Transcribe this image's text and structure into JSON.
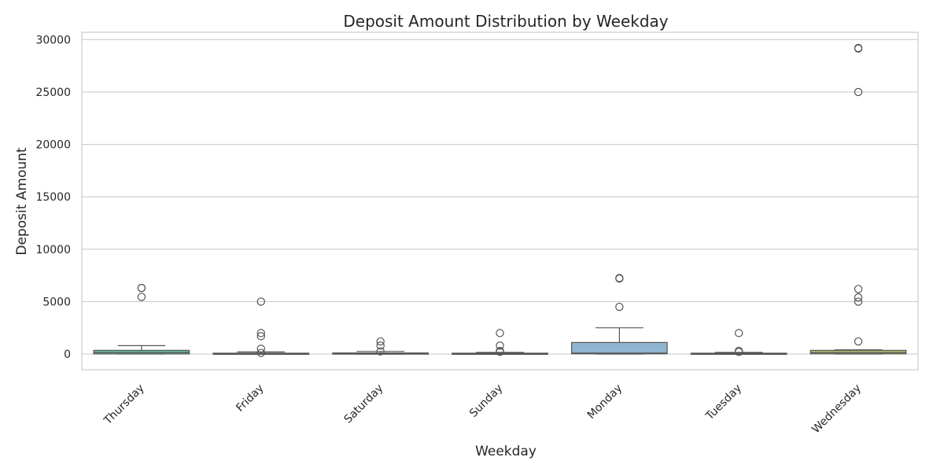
{
  "chart_data": {
    "type": "box",
    "title": "Deposit Amount Distribution by Weekday",
    "xlabel": "Weekday",
    "ylabel": "Deposit Amount",
    "ylim": [
      -1500,
      30700
    ],
    "yticks": [
      0,
      5000,
      10000,
      15000,
      20000,
      25000,
      30000
    ],
    "grid": true,
    "categories": [
      "Thursday",
      "Friday",
      "Saturday",
      "Sunday",
      "Monday",
      "Tuesday",
      "Wednesday"
    ],
    "colors": [
      "#66c2a5",
      "#fc8d62",
      "#8da0cb",
      "#e78ac3",
      "#8fb5d1",
      "#ffd92f",
      "#b3c96f"
    ],
    "boxes": [
      {
        "name": "Thursday",
        "whisker_low": 0,
        "q1": 10,
        "median": 150,
        "q3": 350,
        "whisker_high": 800,
        "outliers": [
          6300,
          6300,
          5450
        ]
      },
      {
        "name": "Friday",
        "whisker_low": 0,
        "q1": 10,
        "median": 30,
        "q3": 80,
        "whisker_high": 200,
        "outliers": [
          5000,
          2000,
          1700,
          500,
          100
        ]
      },
      {
        "name": "Saturday",
        "whisker_low": 0,
        "q1": 10,
        "median": 30,
        "q3": 100,
        "whisker_high": 250,
        "outliers": [
          1200,
          800,
          250
        ]
      },
      {
        "name": "Sunday",
        "whisker_low": 0,
        "q1": 10,
        "median": 30,
        "q3": 80,
        "whisker_high": 150,
        "outliers": [
          2000,
          800,
          300,
          200
        ]
      },
      {
        "name": "Monday",
        "whisker_low": 0,
        "q1": 20,
        "median": 80,
        "q3": 1100,
        "whisker_high": 2500,
        "outliers": [
          7200,
          7250,
          4500
        ]
      },
      {
        "name": "Tuesday",
        "whisker_low": 0,
        "q1": 10,
        "median": 30,
        "q3": 80,
        "whisker_high": 150,
        "outliers": [
          2000,
          300,
          200
        ]
      },
      {
        "name": "Wednesday",
        "whisker_low": 0,
        "q1": 20,
        "median": 150,
        "q3": 350,
        "whisker_high": 400,
        "outliers": [
          29200,
          29150,
          25000,
          6200,
          5400,
          5000,
          1200
        ]
      }
    ]
  }
}
